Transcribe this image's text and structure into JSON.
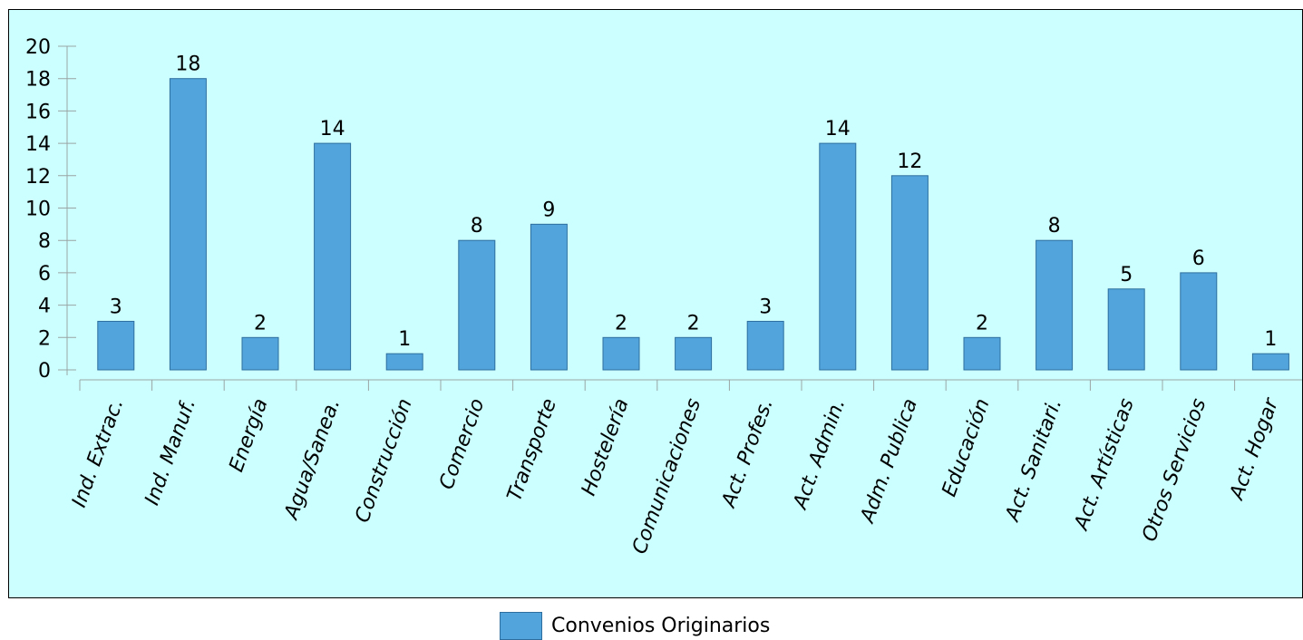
{
  "chart_data": {
    "type": "bar",
    "title": "",
    "xlabel": "",
    "ylabel": "",
    "ylim": [
      0,
      20
    ],
    "yticks": [
      0,
      2,
      4,
      6,
      8,
      10,
      12,
      14,
      16,
      18,
      20
    ],
    "grid": false,
    "legend_position": "bottom",
    "categories": [
      "Ind. Extrac.",
      "Ind. Manuf.",
      "Energía",
      "Agua/Sanea.",
      "Construcción",
      "Comercio",
      "Transporte",
      "Hostelería",
      "Comunicaciones",
      "Act. Profes.",
      "Act. Admin.",
      "Adm. Publica",
      "Educación",
      "Act. Sanitari.",
      "Act. Artísticas",
      "Otros Servicios",
      "Act. Hogar"
    ],
    "series": [
      {
        "name": "Convenios Originarios",
        "values": [
          3,
          18,
          2,
          14,
          1,
          8,
          9,
          2,
          2,
          3,
          14,
          12,
          2,
          8,
          5,
          6,
          1
        ],
        "color": "#52a5dc"
      }
    ],
    "background_color": "#ccffff"
  }
}
